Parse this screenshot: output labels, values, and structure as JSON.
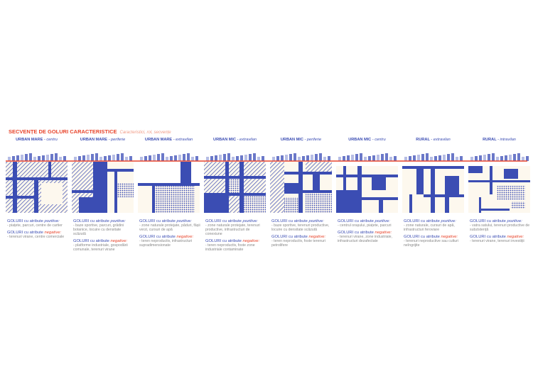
{
  "title": "SECVENȚE DE GOLURI CARACTERISTICE",
  "subtitle": "Caracteristici, rol, secvențe",
  "panels": [
    {
      "heading": "URBAN MARE",
      "context": "- centru",
      "positive_label": "GOLURI cu atribute",
      "positive_word": "pozitive:",
      "positive_text": "- piațete, parcuri, centre de cartier",
      "negative_label": "GOLURI cu atribute",
      "negative_word": "negative:",
      "negative_text": "- terenuri virane, centre comerciale"
    },
    {
      "heading": "URBAN MARE",
      "context": "- periferie",
      "positive_label": "GOLURI cu atribute",
      "positive_word": "pozitive:",
      "positive_text": "- baze sportive, parcuri, grădini botanice, locuire cu densitate scăzută",
      "negative_label": "GOLURI cu atribute",
      "negative_word": "negative:",
      "negative_text": "- platforme industriale, gospodării comunale, terenuri virane"
    },
    {
      "heading": "URBAN MARE",
      "context": "- extravilan",
      "positive_label": "GOLURI cu atribute",
      "positive_word": "pozitive:",
      "positive_text": "- zone naturale protejate, păduri, fâșii verzi, cursuri de apă",
      "negative_label": "GOLURI cu atribute",
      "negative_word": "negative:",
      "negative_text": "- teren neproductiv, infrastructuri supradimensionate"
    },
    {
      "heading": "URBAN MIC",
      "context": "- extravilan",
      "positive_label": "GOLURI cu atribute",
      "positive_word": "pozitive:",
      "positive_text": "- zone naturale protejate, terenuri productive, infrastructuri de conexiune",
      "negative_label": "GOLURI cu atribute",
      "negative_word": "negative:",
      "negative_text": "- teren neproductiv, foste zone industriale contaminate"
    },
    {
      "heading": "URBAN MIC",
      "context": "- periferie",
      "positive_label": "GOLURI cu atribute",
      "positive_word": "pozitive:",
      "positive_text": "- baze sportive, terenuri productive, locuire cu densitate scăzută",
      "negative_label": "GOLURI cu atribute",
      "negative_word": "negative:",
      "negative_text": "- teren neproductiv, foste terenuri petrolifere"
    },
    {
      "heading": "URBAN MIC",
      "context": "- centru",
      "positive_label": "GOLURI cu atribute",
      "positive_word": "pozitive:",
      "positive_text": "- centrul orașului, piațete, parcuri",
      "negative_label": "GOLURI cu atribute",
      "negative_word": "negative:",
      "negative_text": "- terenuri virane, zone industriale, infrastructuri dezafectate"
    },
    {
      "heading": "RURAL",
      "context": "- extravilan",
      "positive_label": "GOLURI cu atribute",
      "positive_word": "pozitive:",
      "positive_text": "- zone naturale, cursuri de apă, infrastructuri feroviare",
      "negative_label": "GOLURI cu atribute",
      "negative_word": "negative:",
      "negative_text": "- terenuri neproductive sau culturi neîngrijite"
    },
    {
      "heading": "RURAL",
      "context": "- intravilan",
      "positive_label": "GOLURI cu atribute",
      "positive_word": "pozitive:",
      "positive_text": "- vatra satului, terenuri productive de subzistență",
      "negative_label": "GOLURI cu atribute",
      "negative_word": "negative:",
      "negative_text": "- terenuri virane, terenuri investiții"
    }
  ]
}
